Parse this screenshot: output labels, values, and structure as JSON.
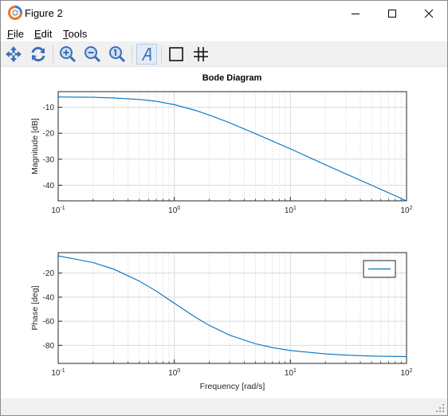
{
  "window": {
    "title": "Figure 2"
  },
  "menu": {
    "file": {
      "mnemonic": "F",
      "rest": "ile"
    },
    "edit": {
      "mnemonic": "E",
      "rest": "dit"
    },
    "tools": {
      "mnemonic": "T",
      "rest": "ools"
    }
  },
  "toolbar": {
    "icons": [
      "pan-icon",
      "rotate-icon",
      "zoom-in-icon",
      "zoom-out-icon",
      "reset-zoom-icon",
      "text-icon",
      "box-icon",
      "grid-icon"
    ]
  },
  "figure": {
    "title": "Bode Diagram"
  },
  "chart_data": [
    {
      "type": "line",
      "title": "Bode Diagram",
      "xlabel": "",
      "ylabel": "Magnitude [dB]",
      "xscale": "log",
      "xlim": [
        0.1,
        100
      ],
      "ylim": [
        -46,
        -4
      ],
      "grid": true,
      "x_tick_labels": [
        "10-1",
        "100",
        "101",
        "102"
      ],
      "y_ticks": [
        -10,
        -20,
        -30,
        -40
      ],
      "series": [
        {
          "color": "#0072bd",
          "x": [
            0.1,
            0.2,
            0.3,
            0.5,
            0.7,
            1,
            1.5,
            2,
            3,
            5,
            7,
            10,
            20,
            30,
            50,
            70,
            100
          ],
          "y": [
            -6.06,
            -6.19,
            -6.41,
            -7.0,
            -7.7,
            -9.0,
            -11.1,
            -13.0,
            -16.0,
            -20.2,
            -23.0,
            -26.0,
            -32.1,
            -35.6,
            -40.0,
            -42.9,
            -46.0
          ]
        }
      ]
    },
    {
      "type": "line",
      "title": "",
      "xlabel": "Frequency [rad/s]",
      "ylabel": "Phase [deg]",
      "xscale": "log",
      "xlim": [
        0.1,
        100
      ],
      "ylim": [
        -95,
        -3
      ],
      "grid": true,
      "legend": "top-right",
      "x_tick_labels": [
        "10-1",
        "100",
        "101",
        "102"
      ],
      "y_ticks": [
        -20,
        -40,
        -60,
        -80
      ],
      "series": [
        {
          "color": "#0072bd",
          "x": [
            0.1,
            0.2,
            0.3,
            0.5,
            0.7,
            1,
            1.5,
            2,
            3,
            5,
            7,
            10,
            20,
            30,
            50,
            70,
            100
          ],
          "y": [
            -5.7,
            -11.3,
            -16.7,
            -26.6,
            -35.0,
            -45.0,
            -56.3,
            -63.4,
            -71.6,
            -78.7,
            -81.9,
            -84.3,
            -87.1,
            -88.1,
            -88.9,
            -89.2,
            -89.4
          ]
        }
      ]
    }
  ]
}
